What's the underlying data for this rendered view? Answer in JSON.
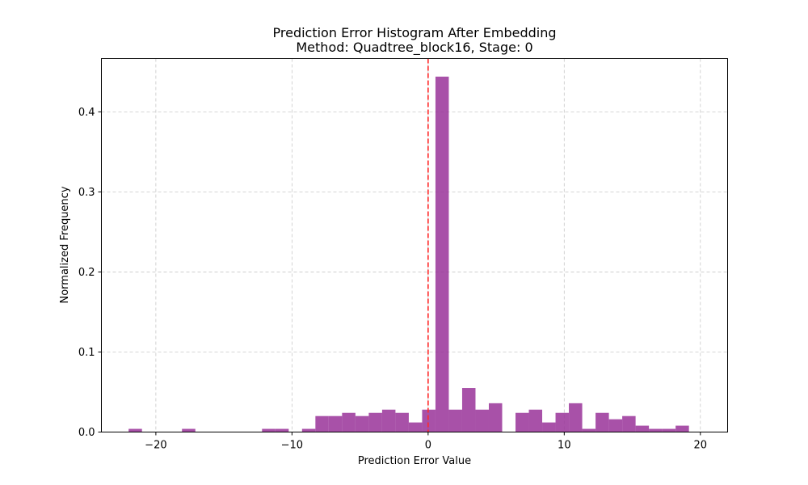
{
  "chart_data": {
    "type": "bar",
    "title_line1": "Prediction Error Histogram After Embedding",
    "title_line2": "Method: Quadtree_block16, Stage: 0",
    "xlabel": "Prediction Error Value",
    "ylabel": "Normalized Frequency",
    "xlim": [
      -24.0,
      22.0
    ],
    "ylim": [
      0,
      0.4665
    ],
    "xticks": [
      -20,
      -10,
      0,
      10,
      20
    ],
    "xtick_labels": [
      "−20",
      "−10",
      "0",
      "10",
      "20"
    ],
    "yticks": [
      0,
      0.1,
      0.2,
      0.3,
      0.4
    ],
    "ytick_labels": [
      "0.0",
      "0.1",
      "0.2",
      "0.3",
      "0.4"
    ],
    "grid": true,
    "grid_style": "dashed",
    "bar_color": "#993399",
    "bar_opacity": 0.85,
    "reference_line": {
      "x": 0,
      "color": "#ff2a2a",
      "style": "dashed"
    },
    "bin_width": 0.98,
    "bins": [
      {
        "x0": -22.0,
        "value": 0.004
      },
      {
        "x0": -18.08,
        "value": 0.004
      },
      {
        "x0": -12.2,
        "value": 0.004
      },
      {
        "x0": -11.22,
        "value": 0.004
      },
      {
        "x0": -9.26,
        "value": 0.004
      },
      {
        "x0": -8.28,
        "value": 0.02
      },
      {
        "x0": -7.3,
        "value": 0.02
      },
      {
        "x0": -6.32,
        "value": 0.024
      },
      {
        "x0": -5.34,
        "value": 0.02
      },
      {
        "x0": -4.36,
        "value": 0.024
      },
      {
        "x0": -3.38,
        "value": 0.028
      },
      {
        "x0": -2.4,
        "value": 0.024
      },
      {
        "x0": -1.42,
        "value": 0.012
      },
      {
        "x0": -0.44,
        "value": 0.028
      },
      {
        "x0": 0.54,
        "value": 0.444
      },
      {
        "x0": 1.52,
        "value": 0.028
      },
      {
        "x0": 2.5,
        "value": 0.055
      },
      {
        "x0": 3.48,
        "value": 0.028
      },
      {
        "x0": 4.46,
        "value": 0.036
      },
      {
        "x0": 6.42,
        "value": 0.024
      },
      {
        "x0": 7.4,
        "value": 0.028
      },
      {
        "x0": 8.38,
        "value": 0.012
      },
      {
        "x0": 9.36,
        "value": 0.024
      },
      {
        "x0": 10.34,
        "value": 0.036
      },
      {
        "x0": 11.32,
        "value": 0.004
      },
      {
        "x0": 12.3,
        "value": 0.024
      },
      {
        "x0": 13.28,
        "value": 0.016
      },
      {
        "x0": 14.26,
        "value": 0.02
      },
      {
        "x0": 15.24,
        "value": 0.008
      },
      {
        "x0": 16.22,
        "value": 0.004
      },
      {
        "x0": 17.2,
        "value": 0.004
      },
      {
        "x0": 18.18,
        "value": 0.008
      }
    ]
  }
}
